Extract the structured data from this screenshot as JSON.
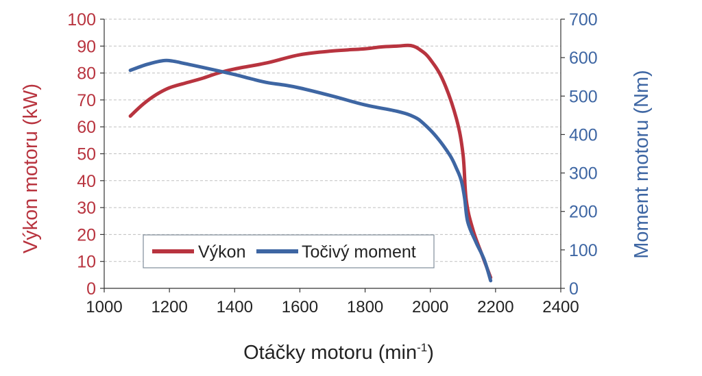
{
  "colors": {
    "power": "#b8343f",
    "torque": "#3e66a3",
    "axis": "#333333",
    "grid": "#bfbfbf"
  },
  "chart_data": {
    "type": "line",
    "xlabel_main": "Otáčky motoru (min",
    "xlabel_sup": "-1",
    "xlabel_end": ")",
    "ylabel_left": "Výkon motoru (kW)",
    "ylabel_right": "Moment motoru (Nm)",
    "xlim": [
      1000,
      2400
    ],
    "ylim_left": [
      0,
      100
    ],
    "ylim_right": [
      0,
      700
    ],
    "xticks": [
      1000,
      1200,
      1400,
      1600,
      1800,
      2000,
      2200,
      2400
    ],
    "yticks_left": [
      0,
      10,
      20,
      30,
      40,
      50,
      60,
      70,
      80,
      90,
      100
    ],
    "yticks_right": [
      0,
      100,
      200,
      300,
      400,
      500,
      600,
      700
    ],
    "grid": "horizontal dashed",
    "legend_position": "bottom-center",
    "series": [
      {
        "name": "Výkon",
        "axis": "left",
        "color": "#b8343f",
        "points": [
          [
            1080,
            64
          ],
          [
            1120,
            68.5
          ],
          [
            1160,
            72
          ],
          [
            1200,
            74.5
          ],
          [
            1250,
            76.3
          ],
          [
            1300,
            78
          ],
          [
            1350,
            80
          ],
          [
            1400,
            81.5
          ],
          [
            1500,
            83.8
          ],
          [
            1600,
            86.8
          ],
          [
            1700,
            88.2
          ],
          [
            1800,
            89
          ],
          [
            1850,
            89.7
          ],
          [
            1900,
            90
          ],
          [
            1940,
            90.2
          ],
          [
            1970,
            88.5
          ],
          [
            2000,
            85
          ],
          [
            2040,
            77
          ],
          [
            2080,
            63
          ],
          [
            2100,
            50
          ],
          [
            2110,
            33
          ],
          [
            2130,
            22
          ],
          [
            2160,
            12
          ],
          [
            2185,
            4
          ]
        ]
      },
      {
        "name": "Točivý moment",
        "axis": "right",
        "color": "#3e66a3",
        "points": [
          [
            1080,
            567
          ],
          [
            1130,
            582
          ],
          [
            1180,
            592
          ],
          [
            1210,
            591
          ],
          [
            1250,
            584
          ],
          [
            1300,
            575
          ],
          [
            1400,
            556
          ],
          [
            1450,
            545
          ],
          [
            1500,
            535
          ],
          [
            1550,
            529
          ],
          [
            1600,
            521
          ],
          [
            1700,
            500
          ],
          [
            1800,
            477
          ],
          [
            1900,
            460
          ],
          [
            1950,
            446
          ],
          [
            1980,
            428
          ],
          [
            2020,
            393
          ],
          [
            2060,
            346
          ],
          [
            2080,
            312
          ],
          [
            2095,
            280
          ],
          [
            2105,
            235
          ],
          [
            2115,
            172
          ],
          [
            2140,
            120
          ],
          [
            2165,
            75
          ],
          [
            2185,
            20
          ]
        ]
      }
    ]
  }
}
